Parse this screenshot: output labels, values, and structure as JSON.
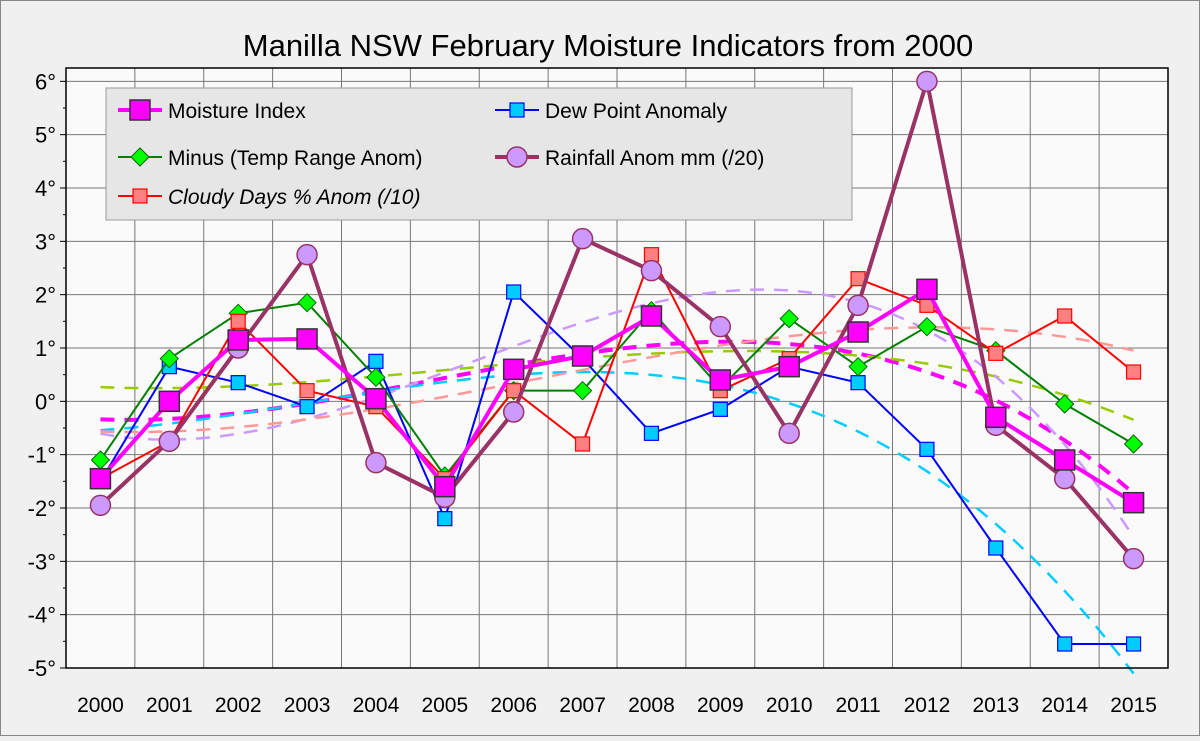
{
  "chart_data": {
    "type": "line",
    "title": "Manilla NSW February Moisture Indicators from 2000",
    "xlabel": "",
    "ylabel": "",
    "x": [
      2000,
      2001,
      2002,
      2003,
      2004,
      2005,
      2006,
      2007,
      2008,
      2009,
      2010,
      2011,
      2012,
      2013,
      2014,
      2015
    ],
    "ylim": [
      -5,
      6.25
    ],
    "yticks": [
      "6°",
      "5°",
      "4°",
      "3°",
      "2°",
      "1°",
      "0°",
      "-1°",
      "-2°",
      "-3°",
      "-4°",
      "-5°"
    ],
    "ytick_values": [
      6,
      5,
      4,
      3,
      2,
      1,
      0,
      -1,
      -2,
      -3,
      -4,
      -5
    ],
    "grid": true,
    "legend_position": "top-left",
    "trendline": "polynomial (dashed, one per series)",
    "series": [
      {
        "name": "Moisture Index",
        "color": "#ff00ff",
        "marker": "square-large",
        "values": [
          -1.45,
          0.0,
          1.15,
          1.17,
          0.05,
          -1.6,
          0.6,
          0.85,
          1.6,
          0.4,
          0.65,
          1.3,
          2.1,
          -0.3,
          -1.1,
          -1.9
        ]
      },
      {
        "name": "Dew Point Anomaly",
        "color": "#0000ff",
        "marker": "square",
        "values": [
          -1.5,
          0.65,
          0.35,
          -0.1,
          0.75,
          -2.2,
          2.05,
          0.8,
          -0.6,
          -0.15,
          0.65,
          0.35,
          -0.9,
          -2.75,
          -4.55,
          -4.55
        ]
      },
      {
        "name": "Minus (Temp Range Anom)",
        "color": "#008000",
        "marker": "diamond",
        "values": [
          -1.1,
          0.8,
          1.65,
          1.85,
          0.45,
          -1.4,
          0.2,
          0.2,
          1.7,
          0.25,
          1.55,
          0.65,
          1.4,
          0.95,
          -0.05,
          -0.8
        ]
      },
      {
        "name": "Rainfall Anom mm (/20)",
        "color": "#993366",
        "marker": "circle",
        "values": [
          -1.95,
          -0.75,
          1.0,
          2.75,
          -1.15,
          -1.8,
          -0.2,
          3.05,
          2.45,
          1.4,
          -0.6,
          1.8,
          6.0,
          -0.45,
          -1.45,
          -2.95
        ]
      },
      {
        "name": "Cloudy Days % Anom (/10)",
        "color": "#ff0000",
        "marker": "square",
        "values": [
          -1.45,
          -0.75,
          1.5,
          0.2,
          -0.1,
          -1.45,
          0.2,
          -0.8,
          2.75,
          0.2,
          0.8,
          2.3,
          1.8,
          0.9,
          1.6,
          0.55
        ]
      }
    ]
  }
}
